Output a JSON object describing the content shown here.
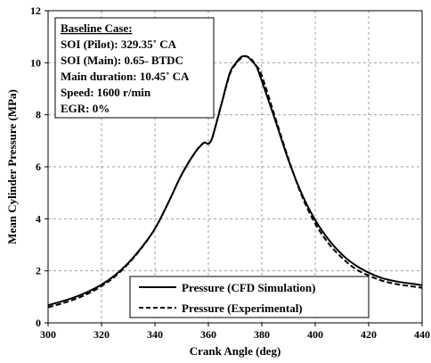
{
  "chart_data": {
    "type": "line",
    "xlabel": "Crank Angle (deg)",
    "ylabel": "Mean Cylinder Pressure (MPa)",
    "xlim": [
      300,
      440
    ],
    "ylim": [
      0,
      12
    ],
    "xticks": [
      "300",
      "320",
      "340",
      "360",
      "380",
      "400",
      "420",
      "440"
    ],
    "yticks": [
      "0",
      "2",
      "4",
      "6",
      "8",
      "10",
      "12"
    ],
    "grid": true,
    "grid_style": "dashed",
    "legend_position": "bottom-center",
    "info_box": {
      "heading": "Baseline Case:",
      "lines": [
        "SOI (Pilot): 329.35˚ CA",
        "SOI (Main): 0.65˗ BTDC",
        "Main duration: 10.45˚ CA",
        "Speed: 1600 r/min",
        "EGR: 0%"
      ]
    },
    "series": [
      {
        "name": "Pressure (CFD Simulation)",
        "style": "solid",
        "color": "#000000",
        "x": [
          300,
          305,
          310,
          315,
          320,
          325,
          330,
          335,
          340,
          345,
          350,
          355,
          358,
          359,
          360,
          361,
          362,
          365,
          368,
          370,
          372,
          373,
          374,
          375,
          376,
          378,
          380,
          385,
          390,
          395,
          400,
          405,
          410,
          415,
          420,
          425,
          430,
          435,
          440
        ],
        "y": [
          0.68,
          0.82,
          0.99,
          1.2,
          1.47,
          1.83,
          2.3,
          2.9,
          3.62,
          4.62,
          5.7,
          6.55,
          6.9,
          6.92,
          6.88,
          7.0,
          7.3,
          8.45,
          9.6,
          9.95,
          10.2,
          10.25,
          10.25,
          10.2,
          10.1,
          9.85,
          9.3,
          7.8,
          6.25,
          4.95,
          3.95,
          3.2,
          2.63,
          2.22,
          1.93,
          1.72,
          1.6,
          1.52,
          1.45
        ]
      },
      {
        "name": "Pressure (Experimental)",
        "style": "dashed",
        "color": "#000000",
        "x": [
          300,
          305,
          310,
          315,
          320,
          325,
          330,
          335,
          340,
          345,
          350,
          355,
          358,
          359,
          360,
          361,
          362,
          365,
          368,
          370,
          372,
          373,
          374,
          375,
          376,
          378,
          380,
          385,
          390,
          395,
          400,
          405,
          410,
          415,
          420,
          425,
          430,
          435,
          440
        ],
        "y": [
          0.6,
          0.74,
          0.91,
          1.13,
          1.41,
          1.78,
          2.27,
          2.88,
          3.62,
          4.62,
          5.7,
          6.55,
          6.9,
          6.92,
          6.9,
          7.0,
          7.3,
          8.45,
          9.55,
          9.92,
          10.15,
          10.22,
          10.25,
          10.22,
          10.15,
          9.88,
          9.5,
          7.9,
          6.3,
          4.88,
          3.82,
          3.05,
          2.5,
          2.08,
          1.82,
          1.62,
          1.5,
          1.42,
          1.35
        ]
      }
    ]
  }
}
